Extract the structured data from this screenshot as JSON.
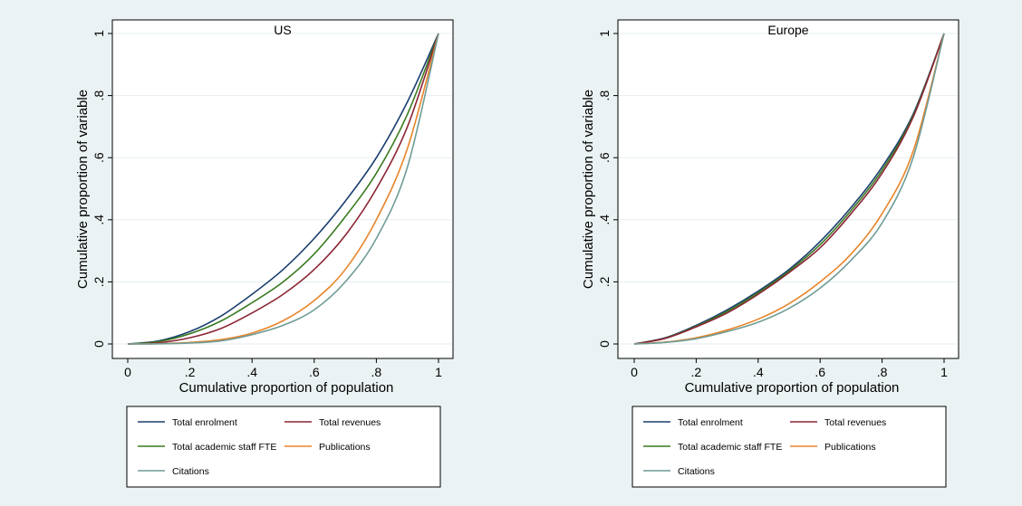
{
  "colors": {
    "Total enrolment": "#1a3e6e",
    "Total revenues": "#8b2534",
    "Total academic staff FTE": "#3a7a22",
    "Publications": "#e8852a",
    "Citations": "#6f9c96"
  },
  "chart_data": [
    {
      "type": "line",
      "title": "US",
      "xlabel": "Cumulative proportion of population",
      "ylabel": "Cumulative proportion of variable",
      "xlim": [
        0,
        1
      ],
      "ylim": [
        0,
        1
      ],
      "xticks": [
        "0",
        ".2",
        ".4",
        ".6",
        ".8",
        "1"
      ],
      "yticks": [
        "0",
        ".2",
        ".4",
        ".6",
        ".8",
        "1"
      ],
      "grid": true,
      "legend_position": "bottom",
      "x": [
        0,
        0.1,
        0.2,
        0.3,
        0.4,
        0.5,
        0.6,
        0.7,
        0.8,
        0.9,
        1.0
      ],
      "series": [
        {
          "name": "Total enrolment",
          "values": [
            0,
            0.01,
            0.04,
            0.09,
            0.16,
            0.24,
            0.34,
            0.46,
            0.6,
            0.78,
            1.0
          ]
        },
        {
          "name": "Total revenues",
          "values": [
            0,
            0.004,
            0.02,
            0.05,
            0.1,
            0.16,
            0.24,
            0.35,
            0.5,
            0.7,
            1.0
          ]
        },
        {
          "name": "Total academic staff FTE",
          "values": [
            0,
            0.008,
            0.033,
            0.074,
            0.133,
            0.2,
            0.29,
            0.41,
            0.55,
            0.74,
            1.0
          ]
        },
        {
          "name": "Publications",
          "values": [
            0,
            0.001,
            0.005,
            0.014,
            0.035,
            0.075,
            0.14,
            0.24,
            0.4,
            0.63,
            1.0
          ]
        },
        {
          "name": "Citations",
          "values": [
            0,
            0.0005,
            0.003,
            0.01,
            0.03,
            0.06,
            0.11,
            0.2,
            0.34,
            0.57,
            1.0
          ]
        }
      ],
      "legend": {
        "items": [
          {
            "label": "Total enrolment",
            "series": "Total enrolment"
          },
          {
            "label": "Total revenues",
            "series": "Total revenues"
          },
          {
            "label": "Total academic staff FTE",
            "series": "Total academic staff FTE"
          },
          {
            "label": "Publications",
            "series": "Publications"
          },
          {
            "label": "Citations",
            "series": "Citations"
          }
        ]
      }
    },
    {
      "type": "line",
      "title": "Europe",
      "xlabel": "Cumulative proportion of population",
      "ylabel": "Cumulative proportion of variable",
      "xlim": [
        0,
        1
      ],
      "ylim": [
        0,
        1
      ],
      "xticks": [
        "0",
        ".2",
        ".4",
        ".6",
        ".8",
        "1"
      ],
      "yticks": [
        "0",
        ".2",
        ".4",
        ".6",
        ".8",
        "1"
      ],
      "grid": true,
      "legend_position": "bottom",
      "x": [
        0,
        0.1,
        0.2,
        0.3,
        0.4,
        0.5,
        0.6,
        0.7,
        0.8,
        0.9,
        1.0
      ],
      "series": [
        {
          "name": "Total enrolment",
          "values": [
            0,
            0.02,
            0.06,
            0.11,
            0.17,
            0.24,
            0.33,
            0.44,
            0.57,
            0.74,
            1.0
          ]
        },
        {
          "name": "Total revenues",
          "values": [
            0,
            0.018,
            0.055,
            0.1,
            0.16,
            0.23,
            0.31,
            0.42,
            0.55,
            0.73,
            1.0
          ]
        },
        {
          "name": "Total academic staff FTE",
          "values": [
            0,
            0.019,
            0.057,
            0.105,
            0.165,
            0.235,
            0.32,
            0.43,
            0.56,
            0.735,
            1.0
          ]
        },
        {
          "name": "Publications",
          "values": [
            0,
            0.006,
            0.02,
            0.045,
            0.08,
            0.13,
            0.2,
            0.29,
            0.42,
            0.62,
            1.0
          ]
        },
        {
          "name": "Citations",
          "values": [
            0,
            0.005,
            0.017,
            0.04,
            0.07,
            0.115,
            0.18,
            0.27,
            0.39,
            0.6,
            1.0
          ]
        }
      ],
      "legend": {
        "items": [
          {
            "label": "Total enrolment",
            "series": "Total enrolment"
          },
          {
            "label": "Total revenues",
            "series": "Total revenues"
          },
          {
            "label": "Total academic staff FTE",
            "series": "Total academic staff FTE"
          },
          {
            "label": "Publications",
            "series": "Publications"
          },
          {
            "label": "Citations",
            "series": "Citations"
          }
        ]
      }
    }
  ]
}
